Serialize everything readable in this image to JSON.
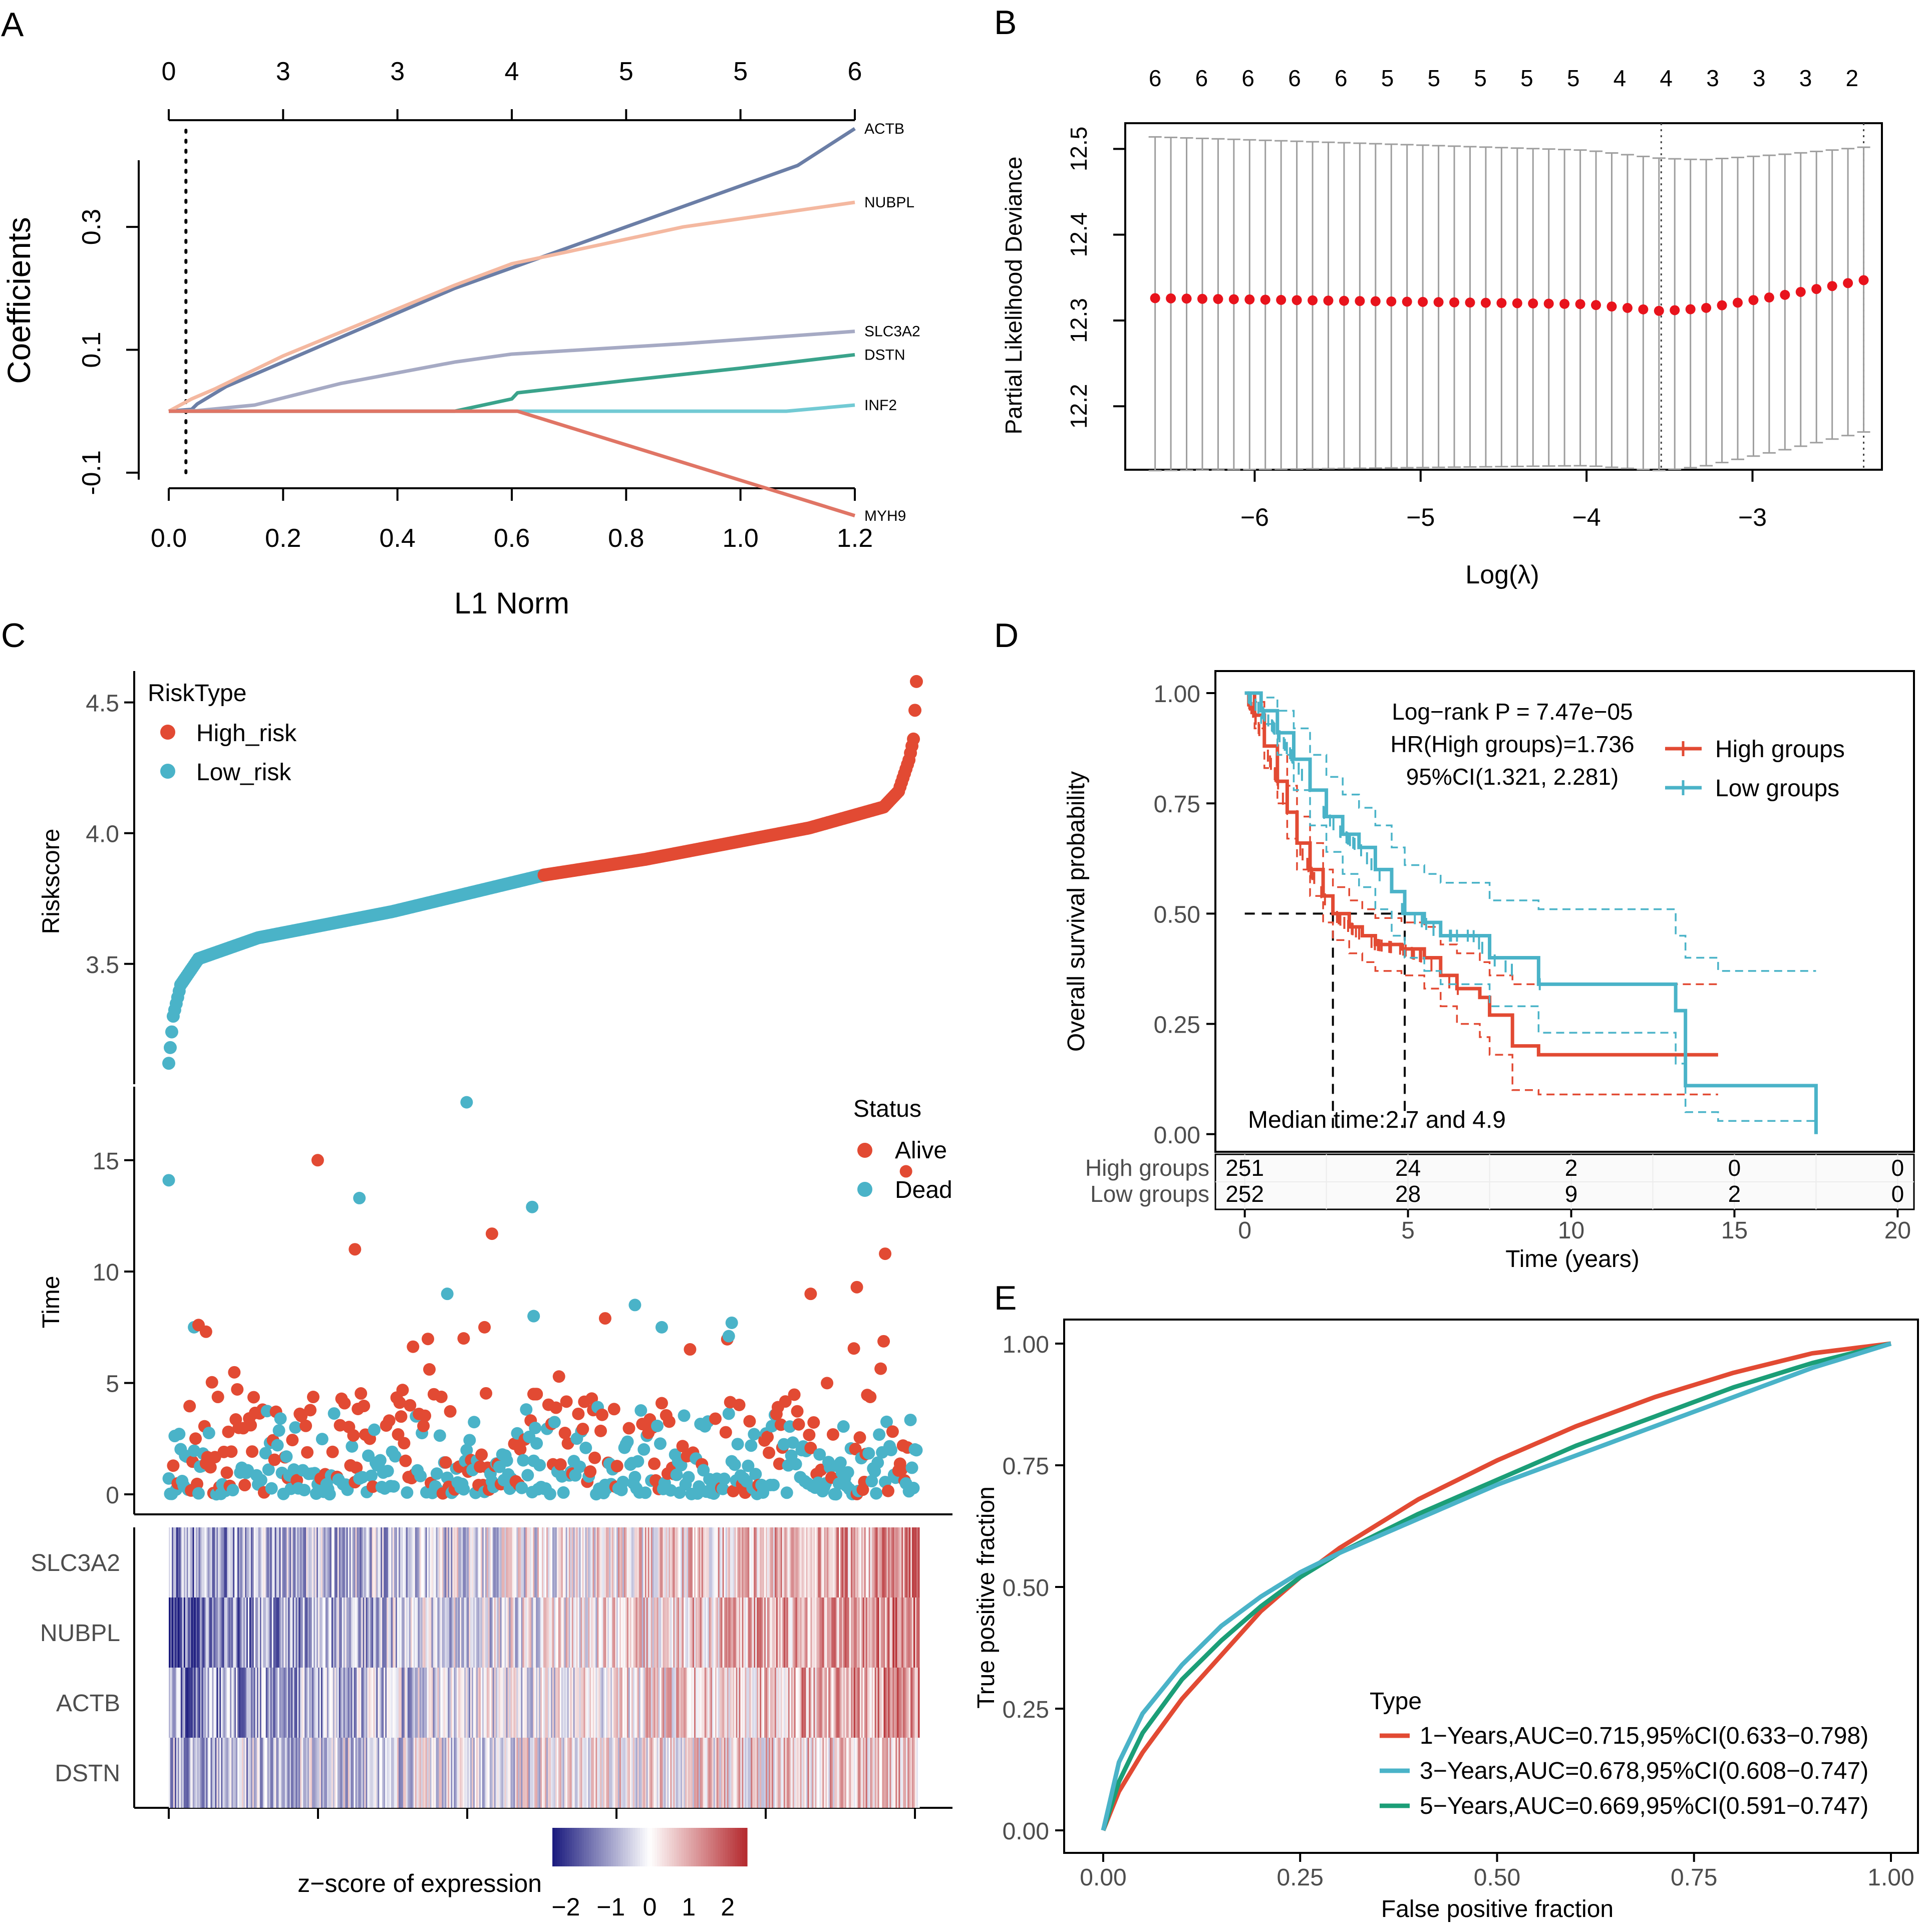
{
  "panels": {
    "A": "A",
    "B": "B",
    "C": "C",
    "D": "D",
    "E": "E"
  },
  "colors": {
    "red": "#e24a33",
    "teal": "#4ab3c8",
    "green": "#1b9e77",
    "navy": "#1a1a6e",
    "grey": "#9e9e9e"
  },
  "chart_data": [
    {
      "id": "A",
      "type": "line",
      "title": "",
      "xlabel": "L1 Norm",
      "ylabel": "Coefficients",
      "xlim": [
        0,
        1.2
      ],
      "ylim": [
        -0.105,
        0.415
      ],
      "xticks": [
        "0.0",
        "0.2",
        "0.4",
        "0.6",
        "0.8",
        "1.0",
        "1.2"
      ],
      "yticks": [
        "-0.1",
        "0.1",
        "0.3"
      ],
      "top_ticks": [
        "0",
        "3",
        "3",
        "4",
        "5",
        "5",
        "6"
      ],
      "vline_x": 0.03,
      "series": [
        {
          "name": "ACTB",
          "color": "#6b7ea6",
          "x": [
            0,
            0.04,
            0.05,
            0.1,
            0.3,
            0.5,
            0.8,
            1.1,
            1.2
          ],
          "values": [
            0,
            0.003,
            0.012,
            0.04,
            0.12,
            0.2,
            0.3,
            0.4,
            0.46
          ]
        },
        {
          "name": "NUBPL",
          "color": "#f4b8a0",
          "x": [
            0,
            0.04,
            0.08,
            0.2,
            0.5,
            0.6,
            0.9,
            1.2
          ],
          "values": [
            0,
            0.02,
            0.036,
            0.09,
            0.205,
            0.24,
            0.3,
            0.34
          ]
        },
        {
          "name": "SLC3A2",
          "color": "#a6aac4",
          "x": [
            0,
            0.05,
            0.15,
            0.3,
            0.5,
            0.6,
            0.9,
            1.2
          ],
          "values": [
            0,
            0.001,
            0.01,
            0.045,
            0.08,
            0.093,
            0.11,
            0.13
          ]
        },
        {
          "name": "DSTN",
          "color": "#3aa38b",
          "x": [
            0,
            0.5,
            0.6,
            0.61,
            0.8,
            1.0,
            1.2
          ],
          "values": [
            0,
            0,
            0.02,
            0.03,
            0.05,
            0.07,
            0.092
          ]
        },
        {
          "name": "INF2",
          "color": "#72cad4",
          "x": [
            0,
            1.08,
            1.2
          ],
          "values": [
            0,
            0,
            0.01
          ]
        },
        {
          "name": "MYH9",
          "color": "#e07565",
          "x": [
            0,
            0.61,
            1.2
          ],
          "values": [
            0,
            0,
            -0.17
          ]
        }
      ]
    },
    {
      "id": "B",
      "type": "scatter",
      "title": "",
      "xlabel": "Log(λ)",
      "ylabel": "Partial Likelihood Deviance",
      "xlim": [
        -6.78,
        -2.22
      ],
      "ylim": [
        12.126,
        12.53
      ],
      "xticks": [
        "−6",
        "−5",
        "−4",
        "−3"
      ],
      "ytick_values": [
        12.2,
        12.3,
        12.4,
        12.5
      ],
      "yticks": [
        "12.2",
        "12.3",
        "12.4",
        "12.5"
      ],
      "top_ticks": [
        "6",
        "6",
        "6",
        "6",
        "6",
        "5",
        "5",
        "5",
        "5",
        "5",
        "4",
        "4",
        "3",
        "3",
        "3",
        "2"
      ],
      "top_tick_x": [
        -6.6,
        -6.32,
        -6.04,
        -5.76,
        -5.48,
        -5.2,
        -4.92,
        -4.64,
        -4.36,
        -4.08,
        -3.8,
        -3.52,
        -3.24,
        -2.96,
        -2.68,
        -2.4
      ],
      "vlines": [
        -3.55,
        -2.33
      ],
      "x_start": -6.6,
      "x_end": -2.33,
      "n_points": 46,
      "upper_band": [
        12.514,
        12.514,
        12.5,
        12.5
      ],
      "lower_band": [
        12.125,
        12.125,
        12.17
      ],
      "mean_profile": [
        [
          -6.6,
          12.326
        ],
        [
          -4.0,
          12.319
        ],
        [
          -3.55,
          12.311
        ],
        [
          -3.3,
          12.314
        ],
        [
          -2.8,
          12.33
        ],
        [
          -2.33,
          12.347
        ]
      ]
    },
    {
      "id": "C1",
      "type": "scatter",
      "title": "",
      "ylabel": "Riskscore",
      "legend_title": "RiskType",
      "legend": [
        "High_risk",
        "Low_risk"
      ],
      "ylim": [
        3.04,
        4.62
      ],
      "yticks": [
        "3.5",
        "4.0",
        "4.5"
      ],
      "ytick_values": [
        3.5,
        4.0,
        4.5
      ],
      "n_patients": 503,
      "n_low": 252,
      "profile": [
        [
          0,
          3.12
        ],
        [
          3,
          3.3
        ],
        [
          8,
          3.42
        ],
        [
          20,
          3.52
        ],
        [
          60,
          3.6
        ],
        [
          150,
          3.7
        ],
        [
          252,
          3.84
        ],
        [
          320,
          3.9
        ],
        [
          430,
          4.02
        ],
        [
          480,
          4.1
        ],
        [
          490,
          4.16
        ],
        [
          497,
          4.28
        ],
        [
          500,
          4.36
        ],
        [
          502,
          4.58
        ]
      ]
    },
    {
      "id": "C2",
      "type": "scatter",
      "title": "",
      "ylabel": "Time",
      "legend_title": "Status",
      "legend": [
        "Alive",
        "Dead"
      ],
      "ylim": [
        -0.9,
        18.3
      ],
      "yticks": [
        "0",
        "5",
        "10",
        "15"
      ],
      "ytick_values": [
        0,
        5,
        10,
        15
      ],
      "highlights": [
        {
          "i": 0,
          "t": 14.1,
          "s": "Dead"
        },
        {
          "i": 100,
          "t": 15.0,
          "s": "Alive"
        },
        {
          "i": 125,
          "t": 11.0,
          "s": "Alive"
        },
        {
          "i": 128,
          "t": 13.3,
          "s": "Dead"
        },
        {
          "i": 187,
          "t": 9.0,
          "s": "Dead"
        },
        {
          "i": 200,
          "t": 17.6,
          "s": "Dead"
        },
        {
          "i": 198,
          "t": 7.0,
          "s": "Alive"
        },
        {
          "i": 212,
          "t": 7.5,
          "s": "Alive"
        },
        {
          "i": 217,
          "t": 11.7,
          "s": "Alive"
        },
        {
          "i": 245,
          "t": 4.5,
          "s": "Alive"
        },
        {
          "i": 245,
          "t": 8.0,
          "s": "Dead"
        },
        {
          "i": 245,
          "t": 8.0,
          "s": "Dead"
        },
        {
          "i": 246,
          "t": 4.5,
          "s": "Alive"
        },
        {
          "i": 247,
          "t": 4.5,
          "s": "Alive"
        },
        {
          "i": 246,
          "t": 4.5,
          "s": "Alive"
        },
        {
          "i": 246,
          "t": 4.5,
          "s": "Alive"
        },
        {
          "i": 247,
          "t": 4.5,
          "s": "Alive"
        },
        {
          "i": 247,
          "t": 4.5,
          "s": "Alive"
        },
        {
          "i": 245,
          "t": 4.5,
          "s": "Alive"
        },
        {
          "i": 247,
          "t": 4.5,
          "s": "Alive"
        },
        {
          "i": 246,
          "t": 4.5,
          "s": "Alive"
        },
        {
          "i": 245,
          "t": 4.5,
          "s": "Alive"
        },
        {
          "i": 245,
          "t": 4.5,
          "s": "Alive"
        },
        {
          "i": 246,
          "t": 4.5,
          "s": "Alive"
        },
        {
          "i": 244,
          "t": 12.9,
          "s": "Dead"
        },
        {
          "i": 293,
          "t": 7.9,
          "s": "Alive"
        },
        {
          "i": 313,
          "t": 8.5,
          "s": "Dead"
        },
        {
          "i": 331,
          "t": 7.5,
          "s": "Dead"
        },
        {
          "i": 378,
          "t": 7.7,
          "s": "Dead"
        },
        {
          "i": 376,
          "t": 7.1,
          "s": "Dead"
        },
        {
          "i": 431,
          "t": 9.0,
          "s": "Alive"
        },
        {
          "i": 462,
          "t": 9.3,
          "s": "Alive"
        },
        {
          "i": 481,
          "t": 10.8,
          "s": "Alive"
        },
        {
          "i": 495,
          "t": 14.5,
          "s": "Alive"
        },
        {
          "i": 17,
          "t": 7.5,
          "s": "Dead"
        },
        {
          "i": 20,
          "t": 7.6,
          "s": "Alive"
        },
        {
          "i": 25,
          "t": 7.3,
          "s": "Alive"
        }
      ]
    },
    {
      "id": "C3",
      "type": "heatmap",
      "title": "",
      "rows": [
        "SLC3A2",
        "NUBPL",
        "ACTB",
        "DSTN"
      ],
      "legend_title": "z−score of expression",
      "legend_ticks": [
        "−2",
        "−1",
        "0",
        "1",
        "2"
      ],
      "n_columns": 503
    },
    {
      "id": "D",
      "type": "line",
      "title": "",
      "xlabel": "Time (years)",
      "ylabel": "Overall survival probability",
      "xlim": [
        -0.9,
        20.5
      ],
      "ylim": [
        -0.04,
        1.05
      ],
      "xticks": [
        "0",
        "5",
        "10",
        "15",
        "20"
      ],
      "xtick_values": [
        0,
        5,
        10,
        15,
        20
      ],
      "yticks": [
        "0.00",
        "0.25",
        "0.50",
        "0.75",
        "1.00"
      ],
      "ytick_values": [
        0,
        0.25,
        0.5,
        0.75,
        1.0
      ],
      "annotations": [
        "Log−rank P = 7.47e−05",
        "HR(High groups)=1.736",
        "95%CI(1.321, 2.281)"
      ],
      "median_label": "Median time:2.7 and 4.9",
      "medians": [
        2.7,
        4.9
      ],
      "legend": [
        "High groups",
        "Low groups"
      ],
      "series": [
        {
          "name": "High groups",
          "color": "#e24a33",
          "x": [
            0,
            0.3,
            0.6,
            1.0,
            1.3,
            1.6,
            2.0,
            2.4,
            2.7,
            3.2,
            3.6,
            4.0,
            4.8,
            5.5,
            6.0,
            6.5,
            7.2,
            7.5,
            8.2,
            9.0,
            10.0,
            12.0,
            13.5,
            14.5
          ],
          "values": [
            1.0,
            0.95,
            0.88,
            0.8,
            0.73,
            0.66,
            0.6,
            0.54,
            0.5,
            0.47,
            0.45,
            0.43,
            0.42,
            0.4,
            0.36,
            0.33,
            0.31,
            0.27,
            0.2,
            0.18,
            0.18,
            0.18,
            0.18,
            0.18
          ],
          "upper": [
            1.0,
            0.98,
            0.93,
            0.86,
            0.79,
            0.72,
            0.66,
            0.6,
            0.56,
            0.53,
            0.51,
            0.49,
            0.48,
            0.47,
            0.43,
            0.41,
            0.39,
            0.36,
            0.34,
            0.34,
            0.34,
            0.34,
            0.34,
            0.34
          ],
          "lower": [
            1.0,
            0.92,
            0.83,
            0.75,
            0.67,
            0.6,
            0.54,
            0.48,
            0.44,
            0.41,
            0.39,
            0.37,
            0.36,
            0.33,
            0.29,
            0.25,
            0.22,
            0.18,
            0.1,
            0.09,
            0.09,
            0.09,
            0.09,
            0.09
          ]
        },
        {
          "name": "Low groups",
          "color": "#4ab3c8",
          "x": [
            0,
            0.5,
            1.0,
            1.5,
            2.0,
            2.5,
            3.0,
            3.5,
            4.0,
            4.5,
            4.9,
            5.5,
            6.0,
            7.0,
            7.5,
            9.0,
            10.0,
            12.8,
            13.2,
            13.5,
            14.5,
            17.5,
            17.5
          ],
          "values": [
            1.0,
            0.96,
            0.91,
            0.85,
            0.78,
            0.72,
            0.68,
            0.65,
            0.6,
            0.55,
            0.5,
            0.48,
            0.45,
            0.45,
            0.4,
            0.34,
            0.34,
            0.34,
            0.28,
            0.11,
            0.11,
            0.11,
            0.0
          ],
          "upper": [
            1.0,
            0.99,
            0.96,
            0.92,
            0.86,
            0.81,
            0.77,
            0.74,
            0.7,
            0.65,
            0.61,
            0.59,
            0.57,
            0.57,
            0.53,
            0.51,
            0.51,
            0.51,
            0.45,
            0.4,
            0.37,
            0.37,
            0.37
          ],
          "lower": [
            1.0,
            0.93,
            0.86,
            0.78,
            0.7,
            0.64,
            0.59,
            0.56,
            0.51,
            0.45,
            0.4,
            0.37,
            0.34,
            0.34,
            0.29,
            0.23,
            0.23,
            0.23,
            0.16,
            0.05,
            0.03,
            0.03,
            0.03
          ]
        }
      ],
      "risk_table": {
        "rows": [
          "High groups",
          "Low groups"
        ],
        "times": [
          0,
          5,
          10,
          15,
          20
        ],
        "values": [
          [
            "251",
            "24",
            "2",
            "0",
            "0"
          ],
          [
            "252",
            "28",
            "9",
            "2",
            "0"
          ]
        ]
      }
    },
    {
      "id": "E",
      "type": "line",
      "title": "",
      "xlabel": "False positive fraction",
      "ylabel": "True positive fraction",
      "xlim": [
        -0.05,
        1.05
      ],
      "ylim": [
        -0.05,
        1.05
      ],
      "xticks": [
        "0.00",
        "0.25",
        "0.50",
        "0.75",
        "1.00"
      ],
      "xtick_values": [
        0,
        0.25,
        0.5,
        0.75,
        1.0
      ],
      "yticks": [
        "0.00",
        "0.25",
        "0.50",
        "0.75",
        "1.00"
      ],
      "ytick_values": [
        0,
        0.25,
        0.5,
        0.75,
        1.0
      ],
      "legend_title": "Type",
      "series": [
        {
          "name": "1−Years,AUC=0.715,95%CI(0.633−0.798)",
          "color": "#e24a33",
          "x": [
            0,
            0.02,
            0.05,
            0.1,
            0.15,
            0.2,
            0.25,
            0.3,
            0.4,
            0.5,
            0.6,
            0.7,
            0.8,
            0.9,
            1.0
          ],
          "values": [
            0,
            0.08,
            0.16,
            0.27,
            0.36,
            0.45,
            0.52,
            0.58,
            0.68,
            0.76,
            0.83,
            0.89,
            0.94,
            0.98,
            1.0
          ]
        },
        {
          "name": "3−Years,AUC=0.678,95%CI(0.608−0.747)",
          "color": "#4ab3c8",
          "x": [
            0,
            0.02,
            0.05,
            0.1,
            0.15,
            0.2,
            0.25,
            0.3,
            0.4,
            0.5,
            0.6,
            0.7,
            0.8,
            0.9,
            1.0
          ],
          "values": [
            0,
            0.14,
            0.24,
            0.34,
            0.42,
            0.48,
            0.53,
            0.57,
            0.64,
            0.71,
            0.77,
            0.83,
            0.89,
            0.95,
            1.0
          ]
        },
        {
          "name": "5−Years,AUC=0.669,95%CI(0.591−0.747)",
          "color": "#1b9e77",
          "x": [
            0,
            0.02,
            0.05,
            0.1,
            0.15,
            0.2,
            0.25,
            0.3,
            0.4,
            0.5,
            0.6,
            0.7,
            0.8,
            0.9,
            1.0
          ],
          "values": [
            0,
            0.1,
            0.2,
            0.31,
            0.39,
            0.46,
            0.52,
            0.57,
            0.65,
            0.72,
            0.79,
            0.85,
            0.91,
            0.96,
            1.0
          ]
        }
      ]
    }
  ]
}
